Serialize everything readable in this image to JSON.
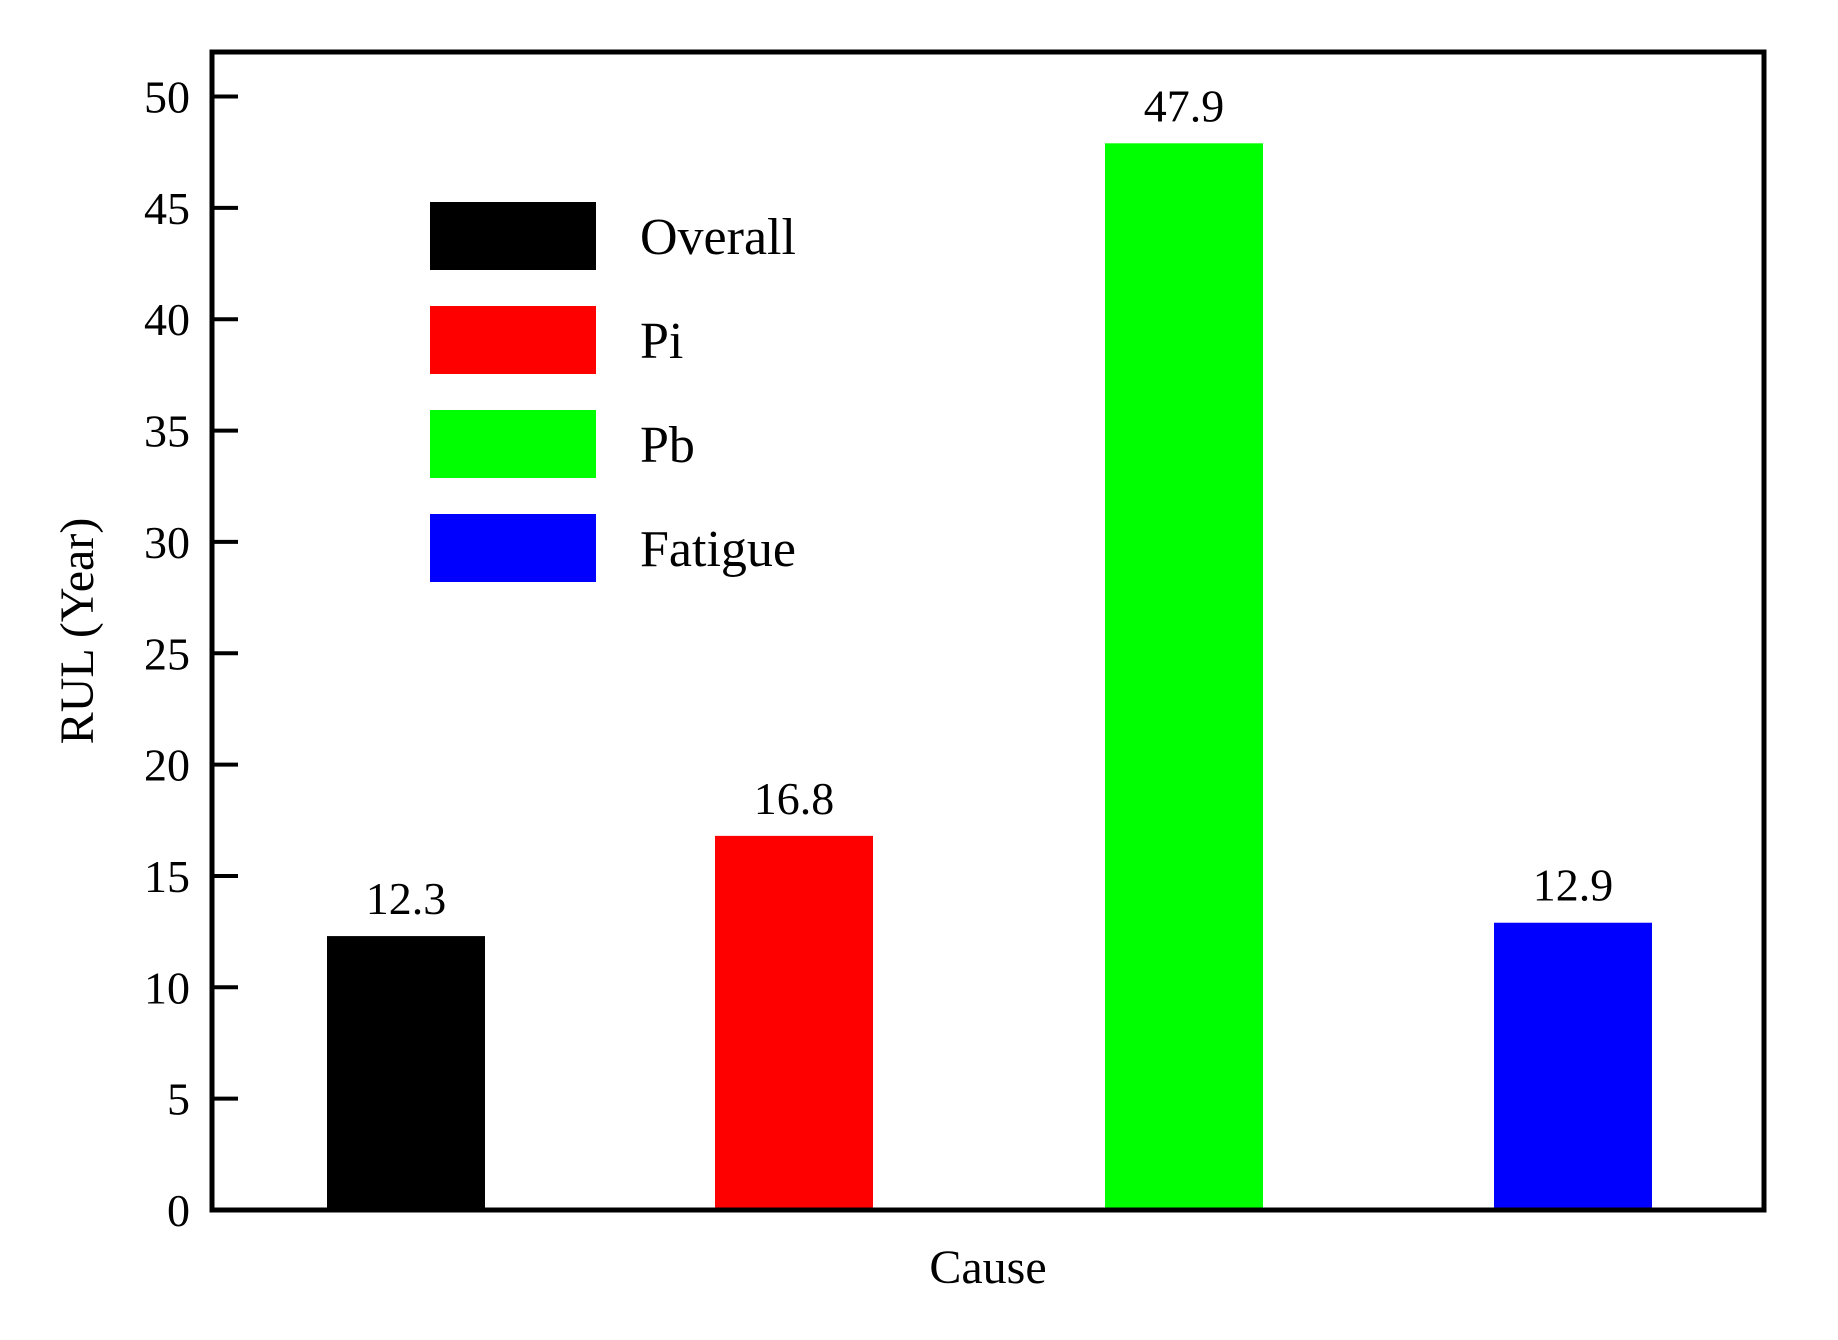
{
  "chart_data": {
    "type": "bar",
    "categories": [
      "Overall",
      "Pi",
      "Pb",
      "Fatigue"
    ],
    "values": [
      12.3,
      16.8,
      47.9,
      12.9
    ],
    "data_labels": [
      "12.3",
      "16.8",
      "47.9",
      "12.9"
    ],
    "colors": [
      "#000000",
      "#ff0000",
      "#00ff00",
      "#0000ff"
    ],
    "title": "",
    "xlabel": "Cause",
    "ylabel": "RUL (Year)",
    "ylim": [
      0,
      52
    ],
    "yticks": [
      0,
      5,
      10,
      15,
      20,
      25,
      30,
      35,
      40,
      45,
      50
    ],
    "ytick_labels": [
      "0",
      "5",
      "10",
      "15",
      "20",
      "25",
      "30",
      "35",
      "40",
      "45",
      "50"
    ],
    "grid": false,
    "legend": {
      "position": "top-left",
      "entries": [
        {
          "name": "Overall",
          "color": "#000000"
        },
        {
          "name": "Pi",
          "color": "#ff0000"
        },
        {
          "name": "Pb",
          "color": "#00ff00"
        },
        {
          "name": "Fatigue",
          "color": "#0000ff"
        }
      ]
    }
  }
}
